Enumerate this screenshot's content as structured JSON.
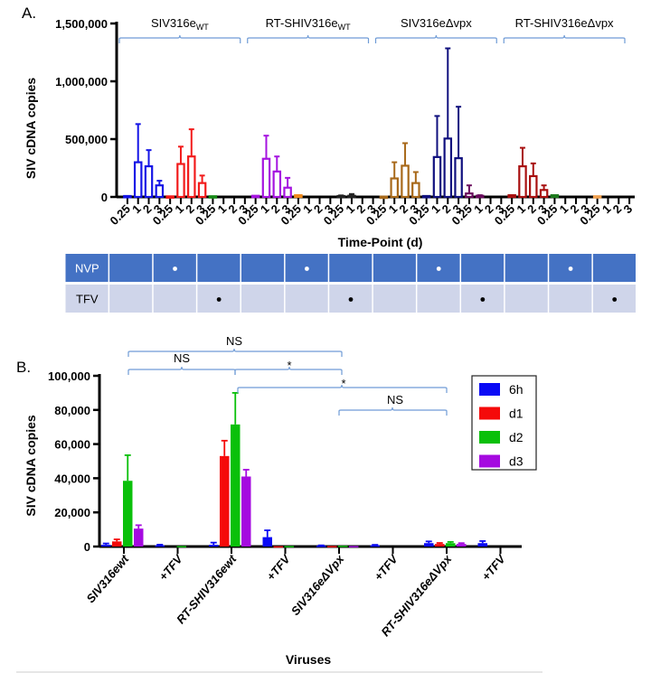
{
  "figure": {
    "panel_a_label": "A.",
    "panel_b_label": "B."
  },
  "chart_data": [
    {
      "id": "panelA",
      "type": "bar",
      "style": "open bars with upper error bars",
      "title": "",
      "ylabel": "SIV cDNA copies",
      "xlabel": "Time-Point (d)",
      "ylim": [
        0,
        1500000
      ],
      "yticks": [
        0,
        500000,
        1000000,
        1500000
      ],
      "ytick_labels": [
        "0",
        "500,000",
        "1,000,000",
        "1,500,000"
      ],
      "timepoint_labels": [
        "0.25",
        "1",
        "2",
        "3"
      ],
      "virus_groups": [
        {
          "label": "SIV316e",
          "subscript": "WT",
          "condition_indices": [
            0,
            1,
            2
          ]
        },
        {
          "label": "RT-SHIV316e",
          "subscript": "WT",
          "condition_indices": [
            3,
            4,
            5
          ]
        },
        {
          "label": "SIV316eΔvpx",
          "subscript": "",
          "condition_indices": [
            6,
            7,
            8
          ]
        },
        {
          "label": "RT-SHIV316eΔvpx",
          "subscript": "",
          "condition_indices": [
            9,
            10,
            11
          ]
        }
      ],
      "conditions": [
        {
          "color": "#1414e6",
          "values": [
            8000,
            300000,
            265000,
            100000
          ],
          "errors": [
            0,
            330000,
            140000,
            40000
          ]
        },
        {
          "color": "#f21b1b",
          "values": [
            5000,
            285000,
            350000,
            120000
          ],
          "errors": [
            0,
            150000,
            235000,
            65000
          ]
        },
        {
          "color": "#178a17",
          "values": [
            6000,
            0,
            0,
            0
          ],
          "errors": [
            0,
            0,
            0,
            0
          ]
        },
        {
          "color": "#a514e0",
          "values": [
            10000,
            330000,
            220000,
            80000
          ],
          "errors": [
            0,
            200000,
            130000,
            85000
          ]
        },
        {
          "color": "#f08a1c",
          "values": [
            15000,
            0,
            0,
            0
          ],
          "errors": [
            0,
            0,
            0,
            0
          ]
        },
        {
          "color": "#222222",
          "values": [
            8000,
            10000,
            0,
            0
          ],
          "errors": [
            5000,
            15000,
            0,
            0
          ]
        },
        {
          "color": "#a8691a",
          "values": [
            3000,
            160000,
            270000,
            120000
          ],
          "errors": [
            0,
            140000,
            195000,
            95000
          ]
        },
        {
          "color": "#10107e",
          "values": [
            8000,
            345000,
            505000,
            335000
          ],
          "errors": [
            0,
            355000,
            780000,
            445000
          ]
        },
        {
          "color": "#6a0d5e",
          "values": [
            30000,
            10000,
            0,
            0
          ],
          "errors": [
            70000,
            5000,
            0,
            0
          ]
        },
        {
          "color": "#a81010",
          "values": [
            15000,
            265000,
            180000,
            60000
          ],
          "errors": [
            0,
            160000,
            110000,
            40000
          ]
        },
        {
          "color": "#1d7a1d",
          "values": [
            15000,
            0,
            0,
            0
          ],
          "errors": [
            0,
            0,
            0,
            0
          ]
        },
        {
          "color": "#f0a050",
          "values": [
            6000,
            0,
            0,
            0
          ],
          "errors": [
            0,
            0,
            0,
            0
          ]
        }
      ],
      "treatment_table": {
        "rows": [
          {
            "label": "NVP",
            "marks": [
              false,
              true,
              false,
              false,
              true,
              false,
              false,
              true,
              false,
              false,
              true,
              false
            ]
          },
          {
            "label": "TFV",
            "marks": [
              false,
              false,
              true,
              false,
              false,
              true,
              false,
              false,
              true,
              false,
              false,
              true
            ]
          }
        ],
        "colors": {
          "nvp_bg": "#4472c4",
          "tfv_bg": "#cfd5ea",
          "nvp_text": "#ffffff",
          "tfv_text": "#000000"
        }
      },
      "bracket_color": "#6f9bd6"
    },
    {
      "id": "panelB",
      "type": "bar",
      "style": "grouped filled bars with upper error bars",
      "title": "",
      "ylabel": "SIV cDNA copies",
      "xlabel": "Viruses",
      "ylim": [
        0,
        100000
      ],
      "yticks": [
        0,
        20000,
        40000,
        60000,
        80000,
        100000
      ],
      "ytick_labels": [
        "0",
        "20,000",
        "40,000",
        "60,000",
        "80,000",
        "100,000"
      ],
      "categories": [
        "SIV316ewt",
        "+TFV",
        "RT-SHIV316ewt",
        "+TFV",
        "SIV316eΔVpx",
        "+TFV",
        "RT-SHIV316eΔVpx",
        "+TFV"
      ],
      "series": [
        {
          "name": "6h",
          "color": "#0a0af5",
          "values": [
            1000,
            700,
            1000,
            5500,
            500,
            700,
            2000,
            2000
          ],
          "errors": [
            800,
            400,
            1300,
            4000,
            200,
            300,
            1000,
            1200
          ]
        },
        {
          "name": "d1",
          "color": "#f50a0a",
          "values": [
            3000,
            0,
            53000,
            200,
            300,
            0,
            1500,
            0
          ],
          "errors": [
            1200,
            0,
            9000,
            0,
            0,
            0,
            600,
            0
          ]
        },
        {
          "name": "d2",
          "color": "#0ac00a",
          "values": [
            38500,
            300,
            71500,
            300,
            500,
            0,
            2000,
            0
          ],
          "errors": [
            15000,
            0,
            18500,
            0,
            0,
            0,
            700,
            0
          ]
        },
        {
          "name": "d3",
          "color": "#a50ae0",
          "values": [
            10500,
            0,
            41000,
            0,
            300,
            0,
            1500,
            0
          ],
          "errors": [
            2000,
            0,
            4000,
            0,
            0,
            0,
            500,
            0
          ]
        }
      ],
      "legend": {
        "placement": "right",
        "entries": [
          "6h",
          "d1",
          "d2",
          "d3"
        ]
      },
      "significance": [
        {
          "from": "SIV316ewt",
          "to": "SIV316eΔVpx",
          "label": "NS"
        },
        {
          "from": "SIV316ewt",
          "to": "RT-SHIV316ewt",
          "label": "NS"
        },
        {
          "from": "RT-SHIV316ewt",
          "to": "SIV316eΔVpx",
          "label": "*"
        },
        {
          "from": "RT-SHIV316ewt",
          "to": "RT-SHIV316eΔVpx",
          "label": "*"
        },
        {
          "from": "SIV316eΔVpx",
          "to": "RT-SHIV316eΔVpx",
          "label": "NS"
        }
      ],
      "bracket_color": "#6f9bd6"
    }
  ]
}
